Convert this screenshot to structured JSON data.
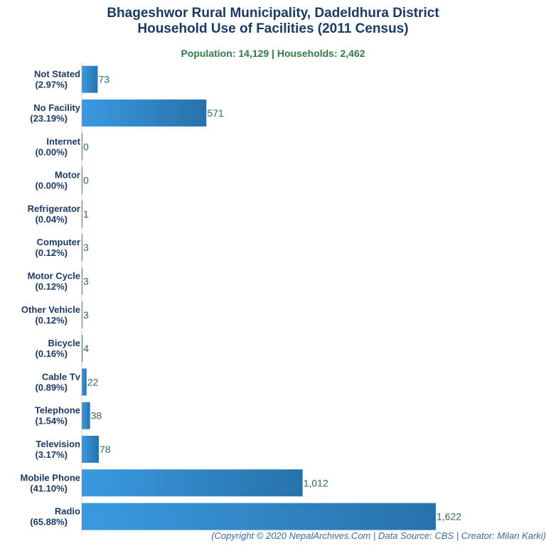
{
  "chart_data": {
    "type": "bar",
    "orientation": "horizontal",
    "title": "Bhageshwor Rural Municipality, Dadeldhura District",
    "subtitle_line": "Household Use of Facilities (2011 Census)",
    "summary": "Population: 14,129 | Households: 2,462",
    "categories": [
      "Not Stated",
      "No Facility",
      "Internet",
      "Motor",
      "Refrigerator",
      "Computer",
      "Motor Cycle",
      "Other Vehicle",
      "Bicycle",
      "Cable Tv",
      "Telephone",
      "Television",
      "Mobile Phone",
      "Radio"
    ],
    "percents": [
      "(2.97%)",
      "(23.19%)",
      "(0.00%)",
      "(0.00%)",
      "(0.04%)",
      "(0.12%)",
      "(0.12%)",
      "(0.12%)",
      "(0.16%)",
      "(0.89%)",
      "(1.54%)",
      "(3.17%)",
      "(41.10%)",
      "(65.88%)"
    ],
    "values": [
      73,
      571,
      0,
      0,
      1,
      3,
      3,
      3,
      4,
      22,
      38,
      78,
      1012,
      1622
    ],
    "value_labels": [
      "73",
      "571",
      "0",
      "0",
      "1",
      "3",
      "3",
      "3",
      "4",
      "22",
      "38",
      "78",
      "1,012",
      "1,622"
    ],
    "xlim": [
      0,
      1622
    ],
    "xlabel": "",
    "ylabel": "",
    "colors": {
      "bar_left": "#3a9ae0",
      "bar_right": "#2872aa",
      "label": "#1a3a66",
      "value": "#2e6b5a",
      "axis": "#c8d4e3"
    }
  },
  "footer": {
    "credit": "(Copyright © 2020 NepalArchives.Com | Data Source: CBS | Creator: Milan Karki)"
  }
}
